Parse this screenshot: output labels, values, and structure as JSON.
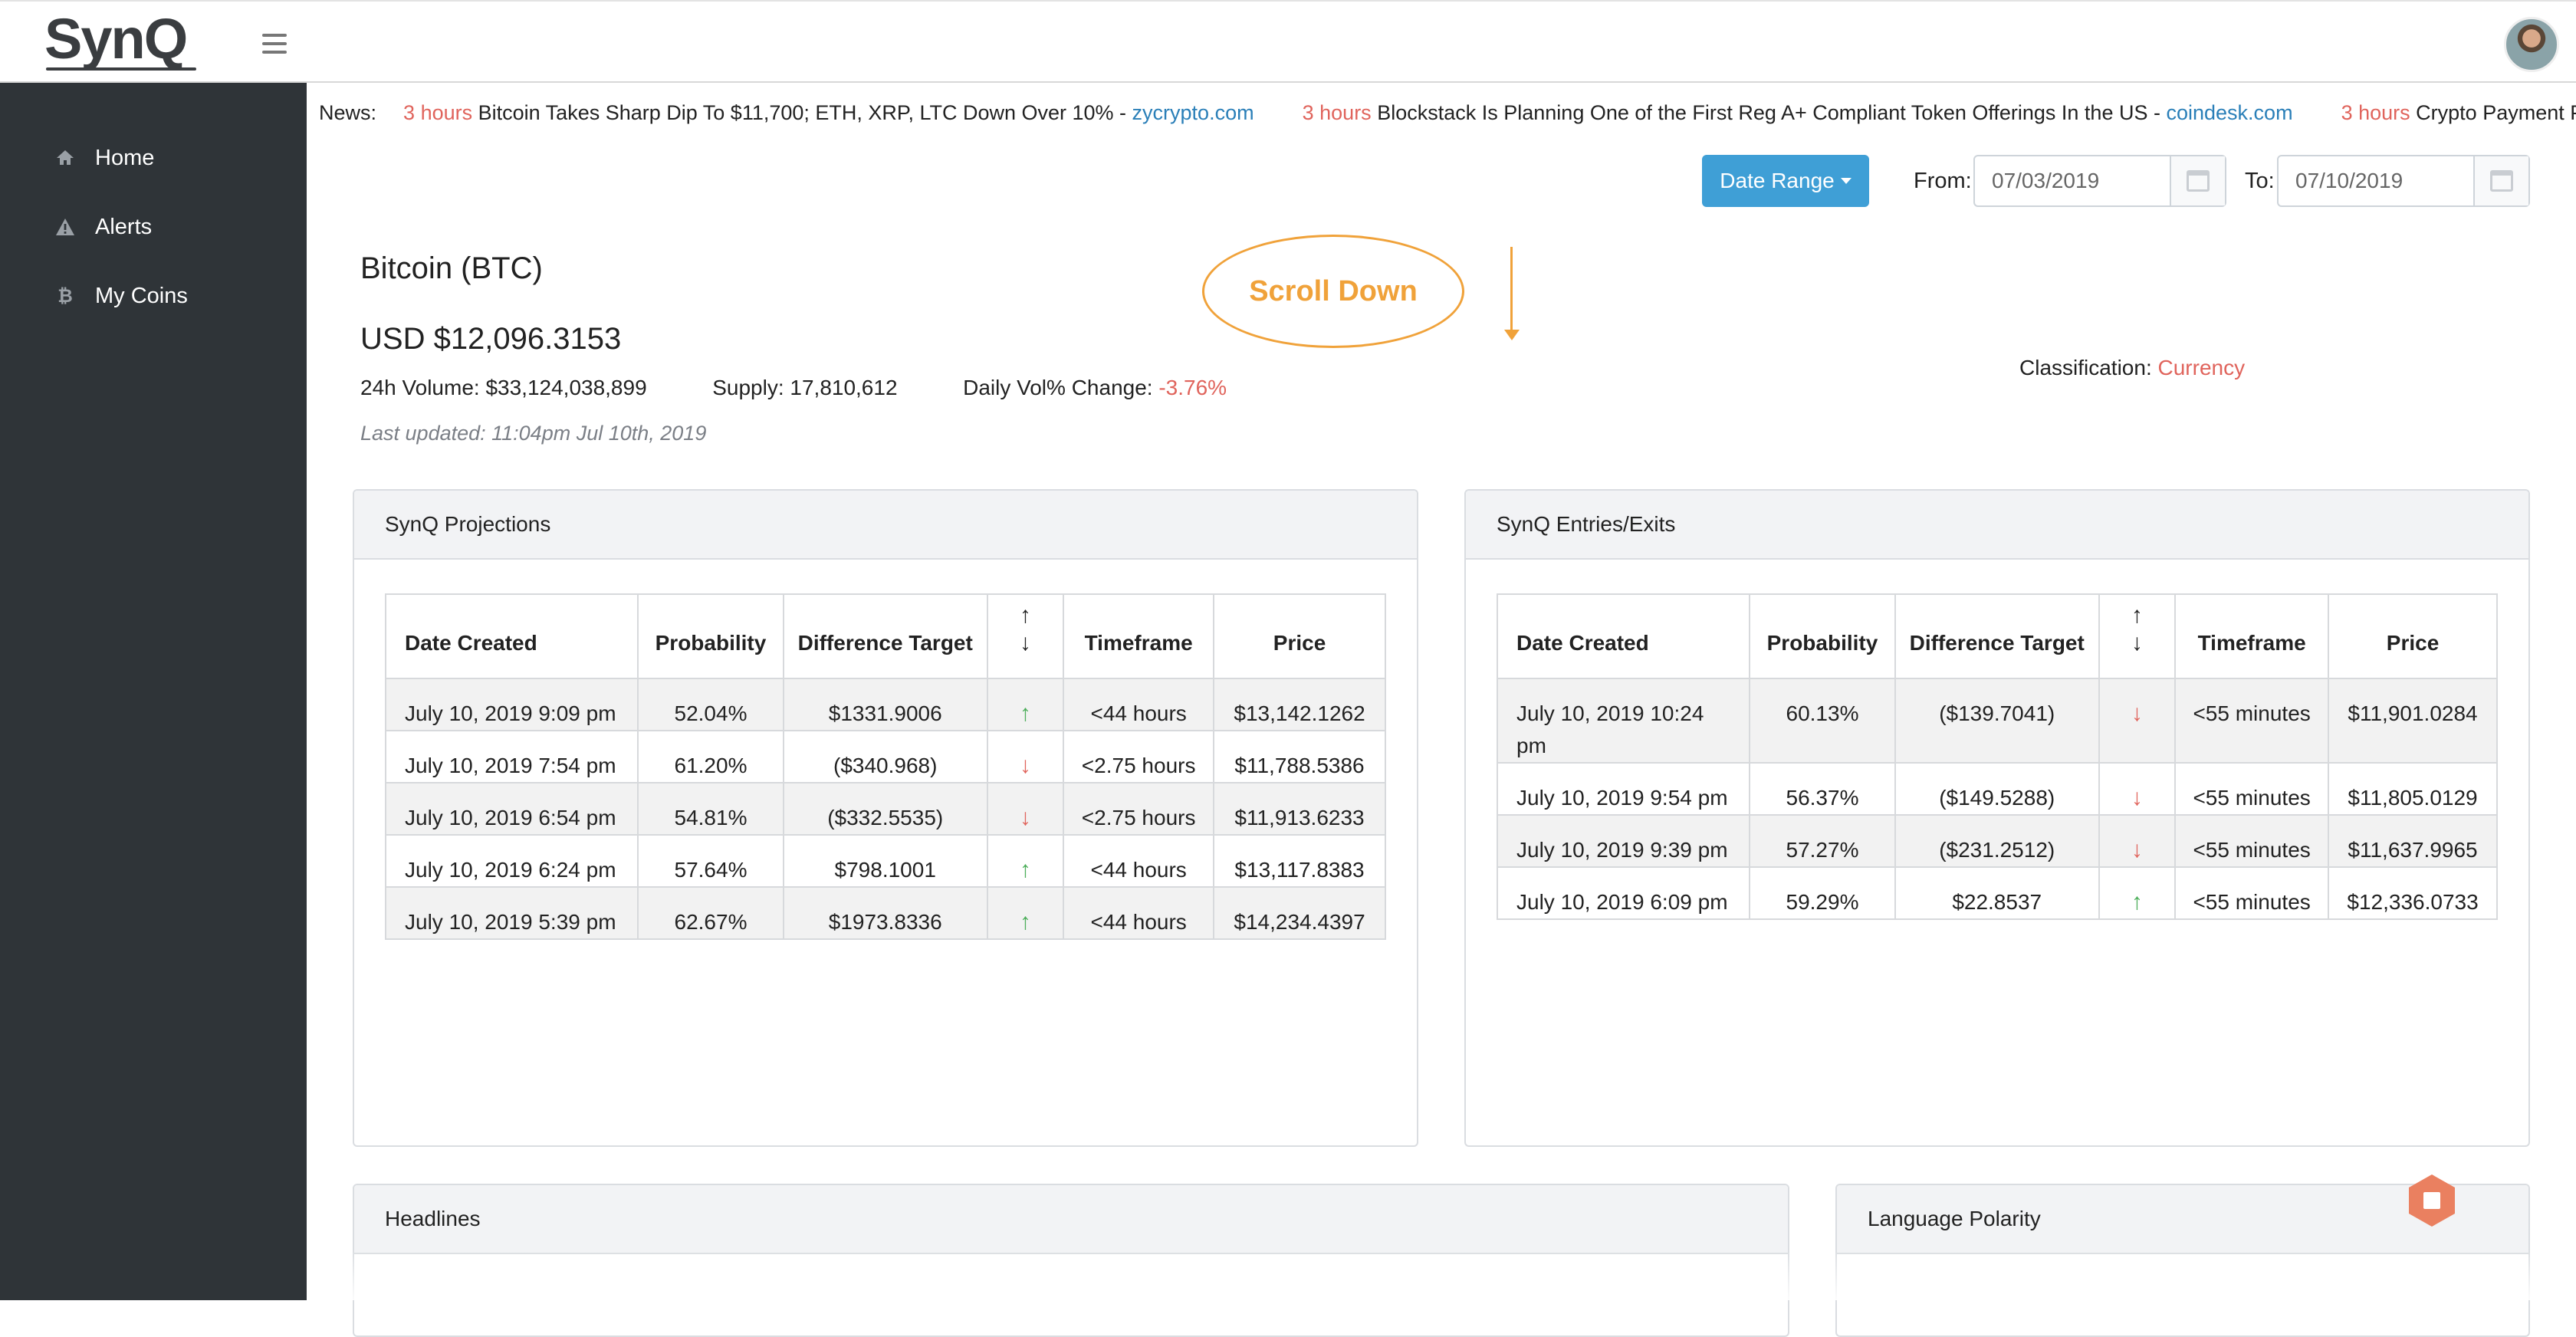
{
  "app": {
    "logo": "SynQ"
  },
  "sidebar": {
    "items": [
      {
        "label": "Home",
        "icon": "home-icon"
      },
      {
        "label": "Alerts",
        "icon": "warning-icon"
      },
      {
        "label": "My Coins",
        "icon": "bitcoin-icon"
      }
    ]
  },
  "news": {
    "label": "News:",
    "items": [
      {
        "ago": "3 hours",
        "title": "Bitcoin Takes Sharp Dip To $11,700; ETH, XRP, LTC Down Over 10% -",
        "source": "zycrypto.com"
      },
      {
        "ago": "3 hours",
        "title": "Blockstack Is Planning One of the First Reg A+ Compliant Token Offerings In the US -",
        "source": "coindesk.com"
      },
      {
        "ago": "3 hours",
        "title": "Crypto Payment Pl",
        "source": ""
      }
    ]
  },
  "filters": {
    "date_range_label": "Date Range",
    "from_label": "From:",
    "from_value": "07/03/2019",
    "to_label": "To:",
    "to_value": "07/10/2019"
  },
  "coin": {
    "title": "Bitcoin (BTC)",
    "price": "USD $12,096.3153",
    "volume": "24h Volume: $33,124,038,899",
    "supply": "Supply: 17,810,612",
    "vol_change_label": "Daily Vol% Change:",
    "vol_change_value": "-3.76%",
    "updated": "Last updated: 11:04pm Jul 10th, 2019",
    "classification_label": "Classification:",
    "classification_value": "Currency"
  },
  "annotation": {
    "scroll_hint": "Scroll Down"
  },
  "projections": {
    "title": "SynQ Projections",
    "headers": [
      "Date Created",
      "Probability",
      "Difference Target",
      "",
      "Timeframe",
      "Price"
    ],
    "rows": [
      {
        "date": "July 10, 2019 9:09 pm",
        "prob": "52.04%",
        "diff": "$1331.9006",
        "dir": "up",
        "tf": "<44 hours",
        "price": "$13,142.1262"
      },
      {
        "date": "July 10, 2019 7:54 pm",
        "prob": "61.20%",
        "diff": "($340.968)",
        "dir": "down",
        "tf": "<2.75 hours",
        "price": "$11,788.5386"
      },
      {
        "date": "July 10, 2019 6:54 pm",
        "prob": "54.81%",
        "diff": "($332.5535)",
        "dir": "down",
        "tf": "<2.75 hours",
        "price": "$11,913.6233"
      },
      {
        "date": "July 10, 2019 6:24 pm",
        "prob": "57.64%",
        "diff": "$798.1001",
        "dir": "up",
        "tf": "<44 hours",
        "price": "$13,117.8383"
      },
      {
        "date": "July 10, 2019 5:39 pm",
        "prob": "62.67%",
        "diff": "$1973.8336",
        "dir": "up",
        "tf": "<44 hours",
        "price": "$14,234.4397"
      }
    ]
  },
  "entries": {
    "title": "SynQ Entries/Exits",
    "headers": [
      "Date Created",
      "Probability",
      "Difference Target",
      "",
      "Timeframe",
      "Price"
    ],
    "rows": [
      {
        "date": "July 10, 2019 10:24 pm",
        "prob": "60.13%",
        "diff": "($139.7041)",
        "dir": "down",
        "tf": "<55 minutes",
        "price": "$11,901.0284"
      },
      {
        "date": "July 10, 2019 9:54 pm",
        "prob": "56.37%",
        "diff": "($149.5288)",
        "dir": "down",
        "tf": "<55 minutes",
        "price": "$11,805.0129"
      },
      {
        "date": "July 10, 2019 9:39 pm",
        "prob": "57.27%",
        "diff": "($231.2512)",
        "dir": "down",
        "tf": "<55 minutes",
        "price": "$11,637.9965"
      },
      {
        "date": "July 10, 2019 6:09 pm",
        "prob": "59.29%",
        "diff": "$22.8537",
        "dir": "up",
        "tf": "<55 minutes",
        "price": "$12,336.0733"
      }
    ]
  },
  "panels": {
    "headlines": "Headlines",
    "language_polarity": "Language Polarity"
  },
  "colors": {
    "accent": "#3f9fd6",
    "negative": "#e0645c",
    "positive": "#4cae5a",
    "annotation": "#f0a23a",
    "sidebar": "#2f3438"
  }
}
